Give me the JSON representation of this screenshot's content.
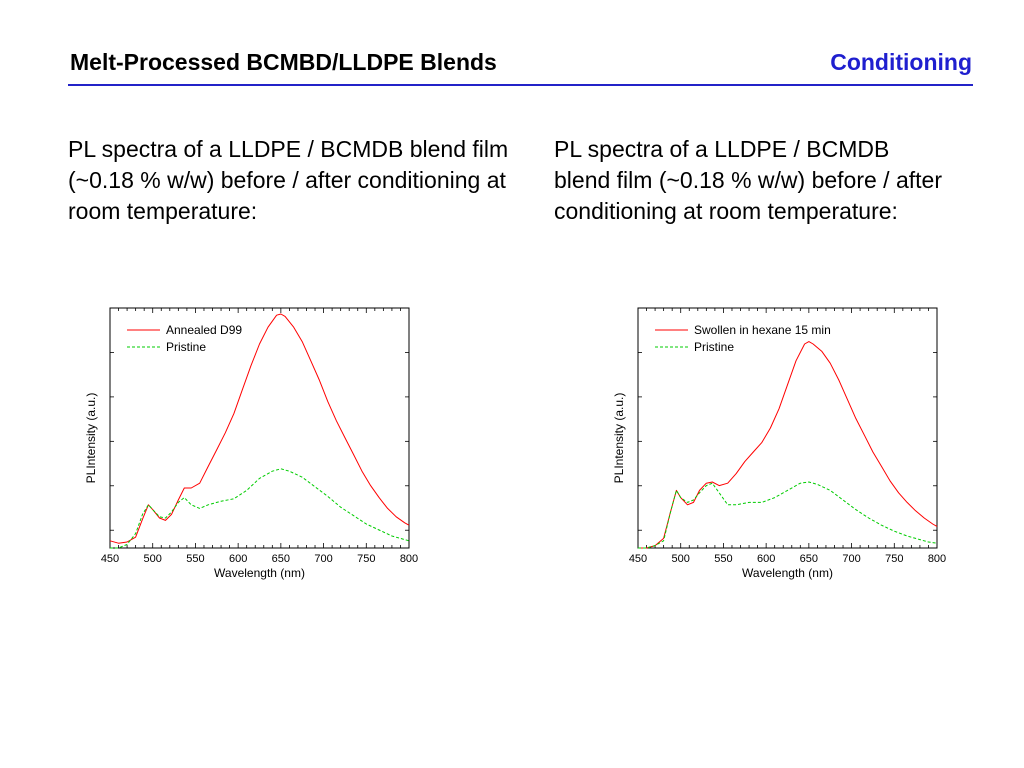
{
  "header": {
    "title": "Melt-Processed BCMBD/LLDPE Blends",
    "section": "Conditioning",
    "accent_color": "#1f1fcf"
  },
  "captions": {
    "left": "PL spectra of a LLDPE / BCMDB blend film (~0.18 % w/w) before / after conditioning at room temperature:",
    "right": "PL spectra of a LLDPE / BCMDB blend film (~0.18 % w/w) before / after conditioning at room temperature:"
  },
  "chart_data": [
    {
      "type": "line",
      "xlabel": "Wavelength (nm)",
      "ylabel": "PLIntensity (a.u.)",
      "xlim": [
        450,
        800
      ],
      "ylim": [
        0,
        1
      ],
      "xticks": [
        "450",
        "500",
        "550",
        "600",
        "650",
        "700",
        "750",
        "800"
      ],
      "legend_position": "top-left",
      "grid": false,
      "series": [
        {
          "name": "Annealed D99",
          "color": "#ff0000",
          "dash": "solid",
          "points": [
            [
              450,
              0.03
            ],
            [
              460,
              0.02
            ],
            [
              470,
              0.025
            ],
            [
              480,
              0.045
            ],
            [
              488,
              0.12
            ],
            [
              495,
              0.18
            ],
            [
              500,
              0.16
            ],
            [
              508,
              0.125
            ],
            [
              515,
              0.115
            ],
            [
              522,
              0.14
            ],
            [
              530,
              0.2
            ],
            [
              537,
              0.25
            ],
            [
              545,
              0.25
            ],
            [
              555,
              0.27
            ],
            [
              565,
              0.34
            ],
            [
              575,
              0.41
            ],
            [
              585,
              0.48
            ],
            [
              595,
              0.56
            ],
            [
              605,
              0.66
            ],
            [
              615,
              0.76
            ],
            [
              625,
              0.85
            ],
            [
              635,
              0.92
            ],
            [
              645,
              0.97
            ],
            [
              650,
              0.975
            ],
            [
              655,
              0.965
            ],
            [
              665,
              0.92
            ],
            [
              675,
              0.86
            ],
            [
              685,
              0.78
            ],
            [
              695,
              0.7
            ],
            [
              705,
              0.61
            ],
            [
              715,
              0.53
            ],
            [
              725,
              0.46
            ],
            [
              735,
              0.39
            ],
            [
              745,
              0.32
            ],
            [
              755,
              0.26
            ],
            [
              765,
              0.21
            ],
            [
              775,
              0.165
            ],
            [
              785,
              0.13
            ],
            [
              795,
              0.105
            ],
            [
              800,
              0.095
            ]
          ]
        },
        {
          "name": "Pristine",
          "color": "#00cc00",
          "dash": "dashed",
          "points": [
            [
              450,
              0.0
            ],
            [
              460,
              0.0
            ],
            [
              470,
              0.015
            ],
            [
              480,
              0.06
            ],
            [
              488,
              0.14
            ],
            [
              495,
              0.18
            ],
            [
              500,
              0.16
            ],
            [
              508,
              0.13
            ],
            [
              515,
              0.125
            ],
            [
              522,
              0.15
            ],
            [
              530,
              0.19
            ],
            [
              537,
              0.21
            ],
            [
              545,
              0.18
            ],
            [
              555,
              0.165
            ],
            [
              565,
              0.18
            ],
            [
              580,
              0.195
            ],
            [
              595,
              0.205
            ],
            [
              610,
              0.24
            ],
            [
              625,
              0.29
            ],
            [
              640,
              0.32
            ],
            [
              650,
              0.33
            ],
            [
              660,
              0.32
            ],
            [
              675,
              0.295
            ],
            [
              690,
              0.255
            ],
            [
              705,
              0.215
            ],
            [
              720,
              0.17
            ],
            [
              735,
              0.135
            ],
            [
              750,
              0.1
            ],
            [
              765,
              0.075
            ],
            [
              780,
              0.05
            ],
            [
              790,
              0.04
            ],
            [
              800,
              0.03
            ]
          ]
        }
      ]
    },
    {
      "type": "line",
      "xlabel": "Wavelength (nm)",
      "ylabel": "PLIntensity (a.u.)",
      "xlim": [
        450,
        800
      ],
      "ylim": [
        0,
        1
      ],
      "xticks": [
        "450",
        "500",
        "550",
        "600",
        "650",
        "700",
        "750",
        "800"
      ],
      "legend_position": "top-left",
      "grid": false,
      "series": [
        {
          "name": "Swollen in hexane 15 min",
          "color": "#ff0000",
          "dash": "solid",
          "points": [
            [
              450,
              0.0
            ],
            [
              460,
              0.0
            ],
            [
              470,
              0.01
            ],
            [
              480,
              0.04
            ],
            [
              488,
              0.15
            ],
            [
              495,
              0.24
            ],
            [
              500,
              0.21
            ],
            [
              508,
              0.18
            ],
            [
              515,
              0.19
            ],
            [
              522,
              0.24
            ],
            [
              530,
              0.27
            ],
            [
              537,
              0.275
            ],
            [
              545,
              0.26
            ],
            [
              555,
              0.27
            ],
            [
              565,
              0.31
            ],
            [
              575,
              0.36
            ],
            [
              585,
              0.4
            ],
            [
              595,
              0.44
            ],
            [
              605,
              0.5
            ],
            [
              615,
              0.58
            ],
            [
              625,
              0.68
            ],
            [
              635,
              0.78
            ],
            [
              645,
              0.85
            ],
            [
              650,
              0.86
            ],
            [
              655,
              0.85
            ],
            [
              665,
              0.82
            ],
            [
              675,
              0.77
            ],
            [
              685,
              0.7
            ],
            [
              695,
              0.62
            ],
            [
              705,
              0.54
            ],
            [
              715,
              0.47
            ],
            [
              725,
              0.4
            ],
            [
              735,
              0.34
            ],
            [
              745,
              0.28
            ],
            [
              755,
              0.23
            ],
            [
              765,
              0.19
            ],
            [
              775,
              0.155
            ],
            [
              785,
              0.125
            ],
            [
              795,
              0.1
            ],
            [
              800,
              0.09
            ]
          ]
        },
        {
          "name": "Pristine",
          "color": "#00cc00",
          "dash": "dashed",
          "points": [
            [
              450,
              0.0
            ],
            [
              460,
              0.0
            ],
            [
              470,
              0.01
            ],
            [
              480,
              0.03
            ],
            [
              488,
              0.15
            ],
            [
              495,
              0.24
            ],
            [
              500,
              0.21
            ],
            [
              508,
              0.19
            ],
            [
              515,
              0.2
            ],
            [
              522,
              0.23
            ],
            [
              530,
              0.26
            ],
            [
              537,
              0.27
            ],
            [
              545,
              0.23
            ],
            [
              555,
              0.18
            ],
            [
              565,
              0.18
            ],
            [
              580,
              0.19
            ],
            [
              595,
              0.19
            ],
            [
              610,
              0.21
            ],
            [
              625,
              0.24
            ],
            [
              640,
              0.27
            ],
            [
              650,
              0.275
            ],
            [
              660,
              0.265
            ],
            [
              675,
              0.24
            ],
            [
              690,
              0.2
            ],
            [
              705,
              0.16
            ],
            [
              720,
              0.125
            ],
            [
              735,
              0.095
            ],
            [
              750,
              0.07
            ],
            [
              765,
              0.05
            ],
            [
              780,
              0.035
            ],
            [
              790,
              0.025
            ],
            [
              800,
              0.02
            ]
          ]
        }
      ]
    }
  ]
}
